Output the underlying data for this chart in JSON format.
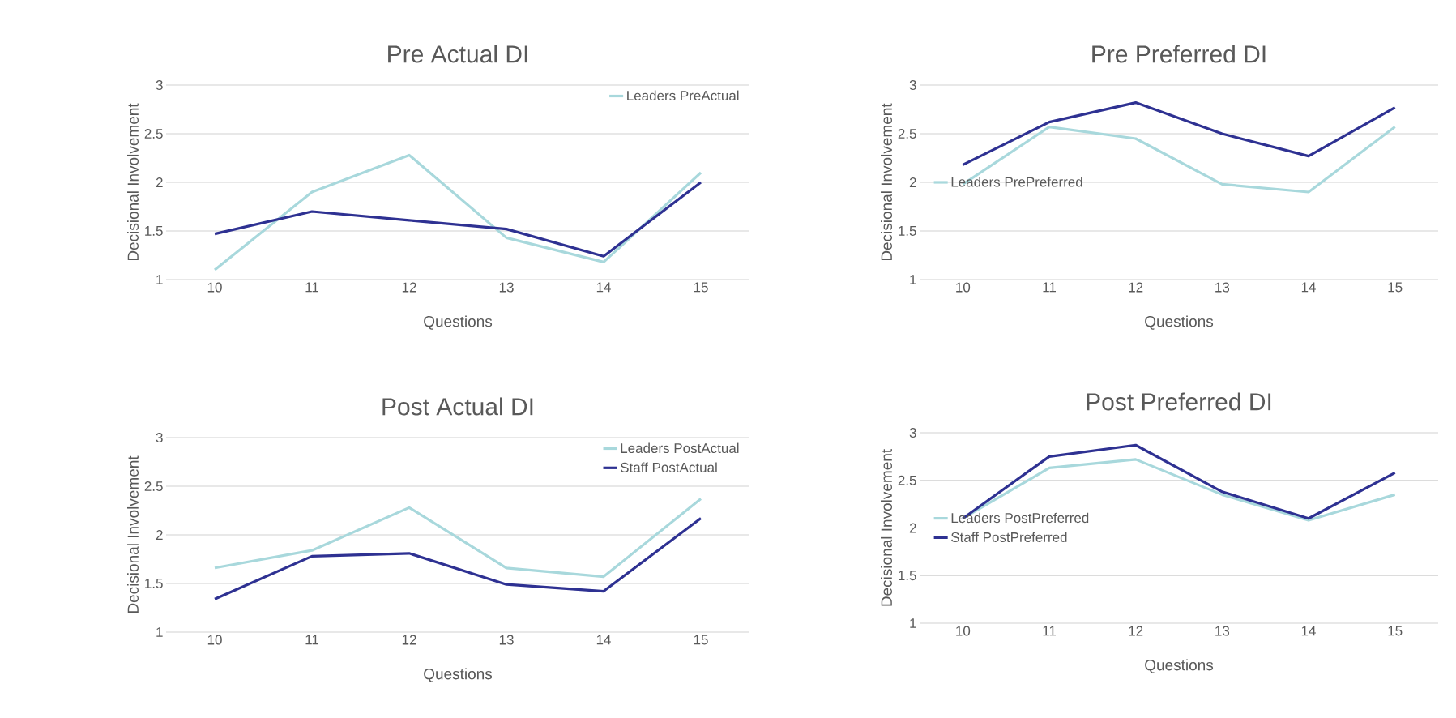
{
  "chart_data": [
    {
      "type": "line",
      "title": "Pre Actual DI",
      "xlabel": "Questions",
      "ylabel": "Decisional Involvement",
      "categories": [
        "10",
        "11",
        "12",
        "13",
        "14",
        "15"
      ],
      "ylim": [
        1,
        3
      ],
      "yticks": [
        1,
        1.5,
        2,
        2.5,
        3
      ],
      "grid": "y",
      "legend": "top right",
      "series": [
        {
          "name": "Leaders PreActual",
          "color": "#a8d8dc",
          "values": [
            1.1,
            1.9,
            2.28,
            1.43,
            1.18,
            2.1
          ]
        },
        {
          "color": "#2e3192",
          "values": [
            1.47,
            1.7,
            1.61,
            1.52,
            1.24,
            2.0
          ]
        }
      ]
    },
    {
      "type": "line",
      "title": "Pre Preferred DI",
      "xlabel": "Questions",
      "ylabel": "Decisional Involvement",
      "categories": [
        "10",
        "11",
        "12",
        "13",
        "14",
        "15"
      ],
      "ylim": [
        1,
        3
      ],
      "yticks": [
        1,
        1.5,
        2,
        2.5,
        3
      ],
      "grid": "y",
      "legend": "left",
      "series": [
        {
          "name": "Leaders PrePreferred",
          "color": "#a8d8dc",
          "values": [
            1.98,
            2.57,
            2.45,
            1.98,
            1.9,
            2.57
          ]
        },
        {
          "color": "#2e3192",
          "values": [
            2.18,
            2.62,
            2.82,
            2.5,
            2.27,
            2.77
          ]
        }
      ]
    },
    {
      "type": "line",
      "title": "Post Actual DI",
      "xlabel": "Questions",
      "ylabel": "Decisional Involvement",
      "categories": [
        "10",
        "11",
        "12",
        "13",
        "14",
        "15"
      ],
      "ylim": [
        1,
        3
      ],
      "yticks": [
        1,
        1.5,
        2,
        2.5,
        3
      ],
      "grid": "y",
      "legend": "top right",
      "series": [
        {
          "name": "Leaders PostActual",
          "color": "#a8d8dc",
          "values": [
            1.66,
            1.84,
            2.28,
            1.66,
            1.57,
            2.37
          ]
        },
        {
          "name": "Staff PostActual",
          "color": "#2e3192",
          "values": [
            1.34,
            1.78,
            1.81,
            1.49,
            1.42,
            2.17
          ]
        }
      ]
    },
    {
      "type": "line",
      "title": "Post Preferred DI",
      "xlabel": "Questions",
      "ylabel": "Decisional Involvement",
      "categories": [
        "10",
        "11",
        "12",
        "13",
        "14",
        "15"
      ],
      "ylim": [
        1,
        3
      ],
      "yticks": [
        1,
        1.5,
        2,
        2.5,
        3
      ],
      "grid": "y",
      "legend": "left",
      "series": [
        {
          "name": "Leaders PostPreferred",
          "color": "#a8d8dc",
          "values": [
            2.1,
            2.63,
            2.72,
            2.35,
            2.08,
            2.35
          ]
        },
        {
          "name": "Staff PostPreferred",
          "color": "#2e3192",
          "values": [
            2.1,
            2.75,
            2.87,
            2.38,
            2.1,
            2.58
          ]
        }
      ]
    }
  ]
}
